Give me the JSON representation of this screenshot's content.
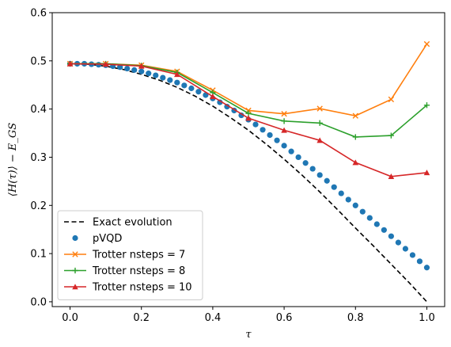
{
  "chart_data": {
    "type": "line",
    "xlabel": "τ",
    "ylabel": "⟨H(τ)⟩ − E_GS",
    "xlim": [
      -0.05,
      1.05
    ],
    "ylim": [
      -0.01,
      0.6
    ],
    "xticks": [
      0.0,
      0.2,
      0.4,
      0.6,
      0.8,
      1.0
    ],
    "xtick_labels": [
      "0.0",
      "0.2",
      "0.4",
      "0.6",
      "0.8",
      "1.0"
    ],
    "yticks": [
      0.0,
      0.1,
      0.2,
      0.3,
      0.4,
      0.5,
      0.6
    ],
    "ytick_labels": [
      "0.0",
      "0.1",
      "0.2",
      "0.3",
      "0.4",
      "0.5",
      "0.6"
    ],
    "grid": false,
    "legend_position": "lower-left",
    "series": [
      {
        "name": "Exact evolution",
        "style": "dashed",
        "color": "#000000",
        "x": [
          0.0,
          0.05,
          0.1,
          0.15,
          0.2,
          0.25,
          0.3,
          0.35,
          0.4,
          0.45,
          0.5,
          0.55,
          0.6,
          0.65,
          0.7,
          0.75,
          0.8,
          0.85,
          0.9,
          0.95,
          1.0
        ],
        "y": [
          0.494,
          0.493,
          0.489,
          0.482,
          0.472,
          0.46,
          0.445,
          0.427,
          0.406,
          0.382,
          0.356,
          0.327,
          0.296,
          0.263,
          0.228,
          0.191,
          0.153,
          0.116,
          0.078,
          0.04,
          0.0
        ]
      },
      {
        "name": "pVQD",
        "style": "dots",
        "color": "#1f77b4",
        "x": [
          0.0,
          0.02,
          0.04,
          0.06,
          0.08,
          0.1,
          0.12,
          0.14,
          0.16,
          0.18,
          0.2,
          0.22,
          0.24,
          0.26,
          0.28,
          0.3,
          0.32,
          0.34,
          0.36,
          0.38,
          0.4,
          0.42,
          0.44,
          0.46,
          0.48,
          0.5,
          0.52,
          0.54,
          0.56,
          0.58,
          0.6,
          0.62,
          0.64,
          0.66,
          0.68,
          0.7,
          0.72,
          0.74,
          0.76,
          0.78,
          0.8,
          0.82,
          0.84,
          0.86,
          0.88,
          0.9,
          0.92,
          0.94,
          0.96,
          0.98,
          1.0
        ],
        "y": [
          0.494,
          0.494,
          0.494,
          0.493,
          0.492,
          0.491,
          0.489,
          0.487,
          0.484,
          0.481,
          0.478,
          0.474,
          0.47,
          0.465,
          0.46,
          0.455,
          0.449,
          0.443,
          0.436,
          0.429,
          0.422,
          0.414,
          0.405,
          0.397,
          0.387,
          0.378,
          0.368,
          0.357,
          0.346,
          0.335,
          0.324,
          0.312,
          0.3,
          0.288,
          0.276,
          0.263,
          0.251,
          0.238,
          0.225,
          0.212,
          0.2,
          0.187,
          0.174,
          0.161,
          0.149,
          0.136,
          0.123,
          0.11,
          0.097,
          0.084,
          0.071
        ]
      },
      {
        "name": "Trotter nsteps = 7",
        "style": "line-x",
        "color": "#ff7f0e",
        "x": [
          0.0,
          0.1,
          0.2,
          0.3,
          0.4,
          0.5,
          0.6,
          0.7,
          0.8,
          0.9,
          1.0
        ],
        "y": [
          0.494,
          0.494,
          0.491,
          0.478,
          0.439,
          0.397,
          0.39,
          0.401,
          0.386,
          0.42,
          0.535
        ]
      },
      {
        "name": "Trotter nsteps = 8",
        "style": "line-plus",
        "color": "#2ca02c",
        "x": [
          0.0,
          0.1,
          0.2,
          0.3,
          0.4,
          0.5,
          0.6,
          0.7,
          0.8,
          0.9,
          1.0
        ],
        "y": [
          0.494,
          0.494,
          0.49,
          0.476,
          0.434,
          0.391,
          0.375,
          0.371,
          0.342,
          0.345,
          0.408
        ]
      },
      {
        "name": "Trotter nsteps = 10",
        "style": "line-triangle",
        "color": "#d62728",
        "x": [
          0.0,
          0.1,
          0.2,
          0.3,
          0.4,
          0.5,
          0.6,
          0.7,
          0.8,
          0.9,
          1.0
        ],
        "y": [
          0.494,
          0.493,
          0.489,
          0.472,
          0.426,
          0.381,
          0.356,
          0.335,
          0.289,
          0.26,
          0.268
        ]
      }
    ]
  }
}
